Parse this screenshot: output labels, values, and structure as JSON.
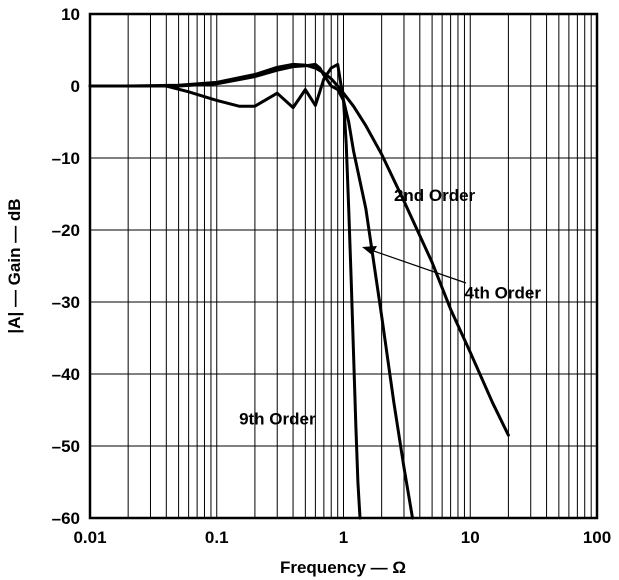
{
  "chart_data": {
    "type": "line",
    "xlabel": "Frequency — Ω",
    "ylabel": "|A| — Gain — dB",
    "xscale": "log",
    "xlim": [
      0.01,
      100
    ],
    "ylim": [
      -60,
      10
    ],
    "grid": true,
    "x_tick_labels": [
      "0.01",
      "0.1",
      "1",
      "10",
      "100"
    ],
    "x_ticks": [
      0.01,
      0.1,
      1,
      10,
      100
    ],
    "y_tick_labels": [
      "10",
      "0",
      "–10",
      "–20",
      "–30",
      "–40",
      "–50",
      "–60"
    ],
    "y_ticks": [
      10,
      0,
      -10,
      -20,
      -30,
      -40,
      -50,
      -60
    ],
    "series": [
      {
        "name": "2nd Order",
        "x": [
          0.01,
          0.02,
          0.05,
          0.1,
          0.2,
          0.3,
          0.4,
          0.5,
          0.6,
          0.7,
          0.8,
          0.9,
          1.0,
          1.2,
          1.5,
          2,
          3,
          5,
          7,
          10,
          15,
          20
        ],
        "y": [
          0,
          0,
          0.1,
          0.5,
          1.6,
          2.6,
          3.0,
          2.9,
          2.5,
          1.8,
          1.0,
          0.0,
          -1.0,
          -2.8,
          -5.5,
          -9.5,
          -16,
          -24.5,
          -31,
          -37,
          -44,
          -48.5
        ]
      },
      {
        "name": "4th Order",
        "x": [
          0.01,
          0.02,
          0.05,
          0.1,
          0.2,
          0.3,
          0.4,
          0.5,
          0.6,
          0.65,
          0.7,
          0.8,
          0.9,
          1.0,
          1.1,
          1.2,
          1.5,
          2,
          2.5,
          3,
          3.5
        ],
        "y": [
          0,
          0,
          0,
          0.3,
          1.3,
          2.2,
          2.7,
          2.8,
          3.0,
          2.5,
          1.5,
          0.0,
          -0.5,
          -2.0,
          -5.0,
          -9.0,
          -17,
          -32,
          -44,
          -53,
          -60
        ]
      },
      {
        "name": "9th Order",
        "x": [
          0.01,
          0.02,
          0.04,
          0.06,
          0.1,
          0.15,
          0.2,
          0.3,
          0.4,
          0.5,
          0.6,
          0.7,
          0.8,
          0.9,
          1.0,
          1.05,
          1.1,
          1.15,
          1.2,
          1.25,
          1.3,
          1.35
        ],
        "y": [
          0,
          0,
          0,
          -0.8,
          -2.0,
          -2.8,
          -2.8,
          -1.0,
          -3.0,
          -0.5,
          -2.7,
          1.0,
          2.5,
          3.0,
          -2.0,
          -8.0,
          -17,
          -27,
          -37,
          -47,
          -55,
          -60
        ]
      }
    ],
    "annotations": [
      {
        "text": "2nd Order",
        "x": 2.5,
        "y": -16
      },
      {
        "text": "4th Order",
        "x": 9,
        "y": -29.5
      },
      {
        "text": "9th Order",
        "x": 0.15,
        "y": -47
      }
    ]
  }
}
